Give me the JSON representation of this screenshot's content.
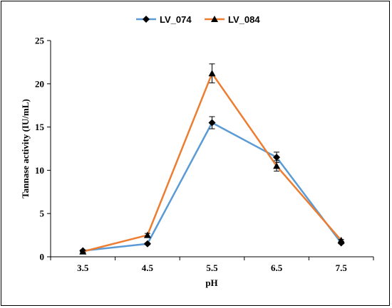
{
  "chart_data": {
    "type": "line",
    "title": "",
    "xlabel": "pH",
    "ylabel": "Tannase activity (IU/mL)",
    "categories": [
      "3.5",
      "4.5",
      "5.5",
      "6.5",
      "7.5"
    ],
    "ylim": [
      0,
      25
    ],
    "yticks": [
      "0",
      "5",
      "10",
      "15",
      "20",
      "25"
    ],
    "legend_position": "top-center",
    "grid": false,
    "series": [
      {
        "name": "LV_074",
        "color": "#5B9BD5",
        "marker": "diamond",
        "values": [
          0.7,
          1.5,
          15.5,
          11.5,
          1.6
        ],
        "errors": [
          0.1,
          0.1,
          0.7,
          0.6,
          0.1
        ]
      },
      {
        "name": "LV_084",
        "color": "#ED7D31",
        "marker": "triangle",
        "values": [
          0.6,
          2.5,
          21.2,
          10.5,
          1.9
        ],
        "errors": [
          0.1,
          0.2,
          1.1,
          0.6,
          0.1
        ]
      }
    ]
  }
}
